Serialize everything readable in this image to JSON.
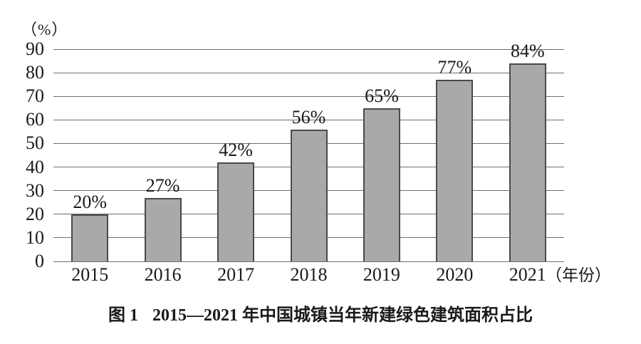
{
  "chart_data": {
    "type": "bar",
    "title": "图 1 2015—2021 年中国城镇当年新建绿色建筑面积占比",
    "unit_label": "（%）",
    "x_axis_label": "（年份）",
    "categories": [
      "2015",
      "2016",
      "2017",
      "2018",
      "2019",
      "2020",
      "2021"
    ],
    "values": [
      20,
      27,
      42,
      56,
      65,
      77,
      84
    ],
    "value_labels": [
      "20%",
      "27%",
      "42%",
      "56%",
      "65%",
      "77%",
      "84%"
    ],
    "ylabel": "",
    "xlabel": "年份",
    "ylim": [
      0,
      90
    ],
    "yticks": [
      0,
      10,
      20,
      30,
      40,
      50,
      60,
      70,
      80,
      90
    ],
    "grid": "horizontal",
    "legend": "none",
    "bar_fill": "#a9a9a9",
    "bar_border": "#4a4a4a",
    "gridline_color": "#6f6f6f",
    "text_color": "#1a1a1a"
  },
  "caption": {
    "label": "图 1",
    "text": "2015—2021 年中国城镇当年新建绿色建筑面积占比"
  }
}
